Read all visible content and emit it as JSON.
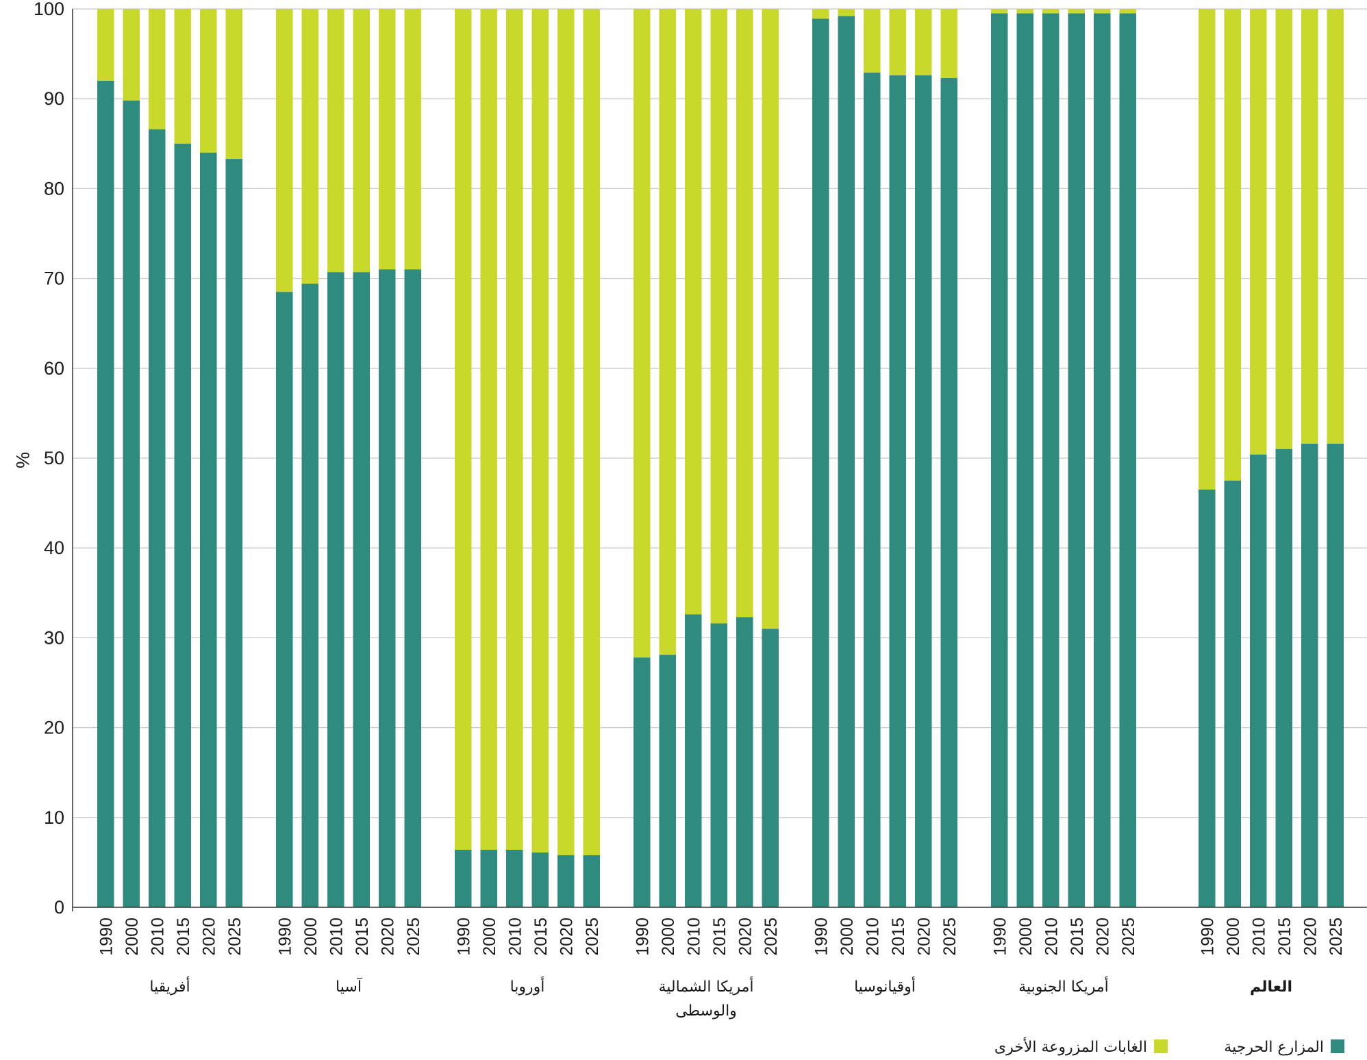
{
  "chart_data": {
    "type": "bar",
    "stacked": true,
    "ylabel": "%",
    "ylim": [
      0,
      100
    ],
    "yticks": [
      0,
      10,
      20,
      30,
      40,
      50,
      60,
      70,
      80,
      90,
      100
    ],
    "grid": true,
    "legend_position": "bottom-right",
    "colors": {
      "plantation": "#2e8b7d",
      "other": "#c8d92b",
      "grid": "#c8c8c8",
      "axis": "#333333"
    },
    "series": [
      {
        "key": "plantation",
        "name": "المزارع الحرجية"
      },
      {
        "key": "other",
        "name": "الغابات المزروعة الأخرى"
      }
    ],
    "groups": [
      {
        "name": "أفريقيا",
        "name_line2": "",
        "bold": false,
        "years": [
          "1990",
          "2000",
          "2010",
          "2015",
          "2020",
          "2025"
        ],
        "plantation": [
          92.0,
          89.8,
          86.6,
          85.0,
          84.0,
          83.3
        ]
      },
      {
        "name": "آسيا",
        "name_line2": "",
        "bold": false,
        "years": [
          "1990",
          "2000",
          "2010",
          "2015",
          "2020",
          "2025"
        ],
        "plantation": [
          68.5,
          69.4,
          70.7,
          70.7,
          71.0,
          71.0
        ]
      },
      {
        "name": "أوروبا",
        "name_line2": "",
        "bold": false,
        "years": [
          "1990",
          "2000",
          "2010",
          "2015",
          "2020",
          "2025"
        ],
        "plantation": [
          6.4,
          6.4,
          6.4,
          6.1,
          5.8,
          5.8
        ]
      },
      {
        "name": "أمريكا الشمالية",
        "name_line2": "والوسطى",
        "bold": false,
        "years": [
          "1990",
          "2000",
          "2010",
          "2015",
          "2020",
          "2025"
        ],
        "plantation": [
          27.8,
          28.1,
          32.6,
          31.6,
          32.3,
          31.0
        ]
      },
      {
        "name": "أوقيانوسيا",
        "name_line2": "",
        "bold": false,
        "years": [
          "1990",
          "2000",
          "2010",
          "2015",
          "2020",
          "2025"
        ],
        "plantation": [
          98.9,
          99.2,
          92.9,
          92.6,
          92.6,
          92.3
        ]
      },
      {
        "name": "أمريكا الجنوبية",
        "name_line2": "",
        "bold": false,
        "years": [
          "1990",
          "2000",
          "2010",
          "2015",
          "2020",
          "2025"
        ],
        "plantation": [
          99.5,
          99.5,
          99.5,
          99.5,
          99.5,
          99.5
        ]
      },
      {
        "name": "العالم",
        "name_line2": "",
        "bold": true,
        "years": [
          "1990",
          "2000",
          "2010",
          "2015",
          "2020",
          "2025"
        ],
        "plantation": [
          46.5,
          47.5,
          50.4,
          51.0,
          51.6,
          51.6
        ]
      }
    ]
  }
}
